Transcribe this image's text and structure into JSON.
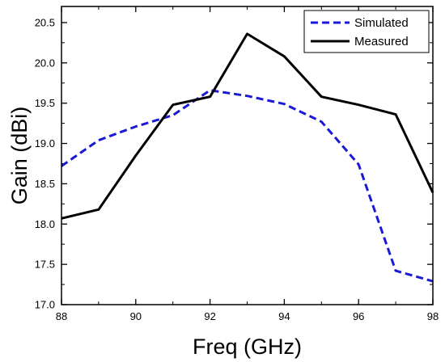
{
  "chart_data": {
    "type": "line",
    "xlabel": "Freq (GHz)",
    "ylabel": "Gain (dBi)",
    "xlim": [
      88,
      98
    ],
    "ylim": [
      17.0,
      20.7
    ],
    "xticks": [
      "88",
      "90",
      "92",
      "94",
      "96",
      "98"
    ],
    "xtick_values": [
      88,
      90,
      92,
      94,
      96,
      98
    ],
    "yticks": [
      "17.0",
      "17.5",
      "18.0",
      "18.5",
      "19.0",
      "19.5",
      "20.0",
      "20.5"
    ],
    "ytick_values": [
      17.0,
      17.5,
      18.0,
      18.5,
      19.0,
      19.5,
      20.0,
      20.5
    ],
    "legend_position": "top-right",
    "grid": false,
    "series": [
      {
        "name": "Simulated",
        "color": "#1a1ad6",
        "style": "dashed",
        "x": [
          88,
          89,
          90,
          91,
          92,
          93,
          94,
          95,
          96,
          97,
          98
        ],
        "y": [
          18.72,
          19.04,
          19.21,
          19.35,
          19.66,
          19.59,
          19.49,
          19.27,
          18.74,
          17.42,
          17.29
        ]
      },
      {
        "name": "Measured",
        "color": "#000000",
        "style": "solid",
        "x": [
          88,
          89,
          90,
          91,
          92,
          93,
          94,
          95,
          96,
          97,
          98
        ],
        "y": [
          18.07,
          18.18,
          18.85,
          19.48,
          19.58,
          20.36,
          20.08,
          19.58,
          19.48,
          19.36,
          18.39
        ]
      }
    ]
  }
}
